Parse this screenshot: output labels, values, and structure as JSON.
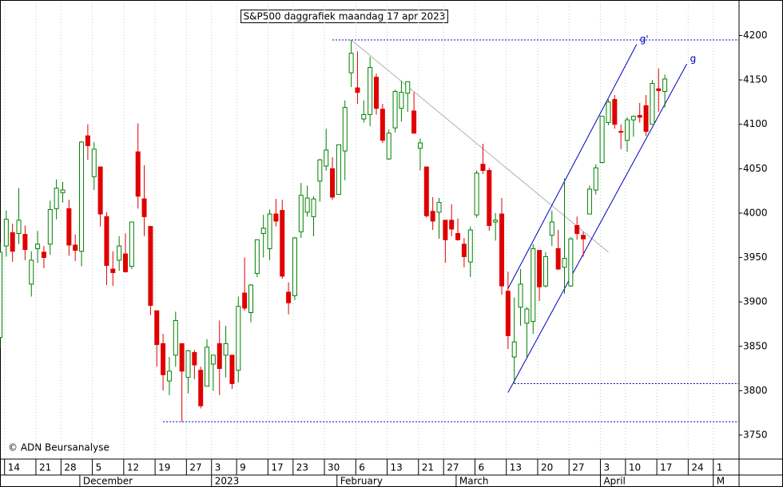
{
  "chart_data": {
    "type": "candlestick",
    "title": "S&P500 daggrafiek maandag 17 apr 2023",
    "footnote": "© ADN Beursanalyse",
    "categories": [
      null,
      null,
      "14",
      null,
      null,
      null,
      null,
      "21",
      null,
      null,
      null,
      "28",
      null,
      null,
      null,
      null,
      "5",
      null,
      null,
      null,
      null,
      "12",
      null,
      null,
      null,
      null,
      "19",
      null,
      null,
      null,
      null,
      "27",
      null,
      null,
      null,
      "3",
      null,
      null,
      null,
      "9",
      null,
      null,
      null,
      null,
      "17",
      null,
      null,
      null,
      "23",
      null,
      null,
      null,
      null,
      "30",
      null,
      null,
      null,
      null,
      "6",
      null,
      null,
      null,
      null,
      "13",
      null,
      null,
      null,
      null,
      "21",
      null,
      null,
      null,
      "27",
      null,
      null,
      null,
      null,
      "6",
      null,
      null,
      null,
      null,
      "13",
      null,
      null,
      null,
      null,
      "20",
      null,
      null,
      null,
      null,
      "27",
      null,
      null,
      null,
      null,
      "3",
      null,
      null,
      null,
      "10",
      null,
      null,
      null,
      null,
      "17",
      null,
      null,
      null,
      null,
      "24",
      null,
      null,
      null,
      "1"
    ],
    "months": [
      null,
      null,
      null,
      null,
      null,
      null,
      null,
      null,
      null,
      null,
      null,
      null,
      null,
      null,
      "December",
      null,
      null,
      null,
      null,
      null,
      null,
      null,
      null,
      null,
      null,
      null,
      null,
      null,
      null,
      null,
      null,
      null,
      null,
      null,
      null,
      "2023",
      null,
      null,
      null,
      null,
      null,
      null,
      null,
      null,
      null,
      null,
      null,
      null,
      null,
      null,
      null,
      null,
      null,
      null,
      null,
      "February",
      null,
      null,
      null,
      null,
      null,
      null,
      null,
      null,
      null,
      null,
      null,
      null,
      null,
      null,
      null,
      null,
      null,
      null,
      "March",
      null,
      null,
      null,
      null,
      null,
      null,
      null,
      null,
      null,
      null,
      null,
      null,
      null,
      null,
      null,
      null,
      null,
      null,
      null,
      null,
      null,
      null,
      "April",
      null,
      null,
      null,
      null,
      null,
      null,
      null,
      null,
      null,
      null,
      null,
      null,
      null,
      null,
      null,
      null,
      null,
      "M"
    ],
    "open": [
      3860,
      3963,
      3978,
      3977,
      3976,
      3920,
      3960,
      3956,
      3965,
      4005,
      4023,
      4005,
      3964,
      3957,
      4087,
      4041,
      4052,
      3996,
      3937,
      3947,
      3954,
      3940,
      4069,
      4016,
      3985,
      3890,
      3853,
      3811,
      3840,
      3853,
      3815,
      3843,
      3823,
      3805,
      3830,
      3853,
      3840,
      3840,
      3823,
      3910,
      3888,
      3932,
      3977,
      3960,
      3999,
      4003,
      3911,
      3907,
      3979,
      4001,
      3996,
      4036,
      4053,
      4050,
      4021,
      4070,
      4158,
      4141,
      4106,
      4111,
      4153,
      4117,
      4061,
      4096,
      4118,
      4135,
      4115,
      4073,
      4052,
      4002,
      4001,
      3992,
      3992,
      3977,
      3965,
      3945,
      3998,
      4055,
      4048,
      3990,
      3999,
      3912,
      3838,
      3894,
      3876,
      3878,
      3958,
      3918,
      3975,
      3960,
      3939,
      3918,
      3986,
      3975,
      3999,
      4026,
      4057,
      4102,
      4128,
      4092,
      4082,
      4105,
      4110,
      4121,
      4100,
      4140,
      4137,
      null,
      null,
      null,
      null,
      null,
      null,
      null,
      null,
      null
    ],
    "high": [
      3966,
      4003,
      3988,
      4028,
      3986,
      3957,
      3980,
      3963,
      4014,
      4038,
      4035,
      4015,
      3976,
      4081,
      4100,
      4080,
      4052,
      4001,
      3957,
      3974,
      3977,
      3990,
      4101,
      4054,
      3985,
      3890,
      3864,
      3838,
      3889,
      3853,
      3846,
      3846,
      3827,
      3858,
      3840,
      3879,
      3873,
      3840,
      3906,
      3950,
      3920,
      3970,
      3998,
      4004,
      4016,
      4015,
      3922,
      3973,
      4034,
      4031,
      4019,
      4061,
      4095,
      4063,
      4077,
      4127,
      4195,
      4182,
      4127,
      4176,
      4157,
      4123,
      4094,
      4139,
      4149,
      4148,
      4136,
      4084,
      4052,
      4018,
      4017,
      3992,
      4010,
      3994,
      3972,
      3985,
      4048,
      4078,
      4051,
      4000,
      4017,
      3934,
      3905,
      3937,
      3894,
      3965,
      3958,
      3956,
      4003,
      3981,
      4039,
      3973,
      3996,
      3979,
      4031,
      4055,
      4109,
      4128,
      4133,
      4100,
      4108,
      4110,
      4124,
      4133,
      4150,
      4163,
      4156,
      null,
      null,
      null,
      null,
      null,
      null,
      null,
      null,
      null
    ],
    "low": [
      3848,
      3951,
      3945,
      3965,
      3947,
      3906,
      3944,
      3938,
      3953,
      3993,
      4012,
      3952,
      3946,
      3940,
      4060,
      4026,
      3985,
      3919,
      3918,
      3935,
      3933,
      3937,
      4005,
      3974,
      3885,
      3827,
      3800,
      3795,
      3827,
      3765,
      3797,
      3813,
      3780,
      3805,
      3800,
      3795,
      3815,
      3802,
      3809,
      3890,
      3877,
      3928,
      3950,
      3947,
      3985,
      3926,
      3886,
      3902,
      3972,
      3996,
      3974,
      4013,
      4048,
      4015,
      4021,
      4037,
      4142,
      4123,
      4102,
      4098,
      4111,
      4079,
      4060,
      4091,
      4103,
      4114,
      4090,
      4048,
      3995,
      3981,
      3971,
      3944,
      3974,
      3969,
      3939,
      3928,
      3995,
      4044,
      3980,
      3969,
      3908,
      3847,
      3808,
      3873,
      3838,
      3864,
      3901,
      3916,
      3963,
      3936,
      3909,
      3917,
      3970,
      3951,
      3999,
      4021,
      4056,
      4099,
      4095,
      4072,
      4069,
      4086,
      4102,
      4087,
      4100,
      4114,
      4119,
      null,
      null,
      null,
      null,
      null,
      null,
      null,
      null,
      null
    ],
    "close": [
      3956,
      3993,
      3957,
      3992,
      3959,
      3947,
      3965,
      3950,
      4004,
      4028,
      4026,
      3964,
      3958,
      4080,
      4076,
      4072,
      3999,
      3941,
      3933,
      3963,
      3934,
      3990,
      4019,
      3996,
      3896,
      3852,
      3818,
      3822,
      3879,
      3822,
      3845,
      3829,
      3783,
      3849,
      3840,
      3825,
      3853,
      3808,
      3895,
      3893,
      3919,
      3970,
      3983,
      3999,
      3991,
      3929,
      3899,
      3972,
      4020,
      4017,
      4016,
      4060,
      4071,
      4018,
      4077,
      4119,
      4180,
      4136,
      4111,
      4164,
      4118,
      4082,
      4090,
      4137,
      4136,
      4148,
      4090,
      4079,
      3997,
      3991,
      4012,
      3970,
      3982,
      3970,
      3951,
      3981,
      4045,
      4048,
      3986,
      3992,
      3918,
      3862,
      3855,
      3920,
      3892,
      3960,
      3917,
      3951,
      3990,
      3937,
      3949,
      3971,
      3977,
      3971,
      4027,
      4051,
      4109,
      4125,
      4100,
      4091,
      4105,
      4109,
      4108,
      4092,
      4146,
      4138,
      4151,
      null,
      null,
      null,
      null,
      null,
      null,
      null,
      null,
      null
    ],
    "up_color": "#008000",
    "down_color": "#e00000",
    "ylim": [
      3723,
      4240
    ],
    "yticks": [
      3750,
      3800,
      3850,
      3900,
      3950,
      4000,
      4050,
      4100,
      4150,
      4200
    ],
    "grid": true,
    "hlines": [
      {
        "value": 4195,
        "from": 53
      },
      {
        "value": 3808,
        "from": 82
      },
      {
        "value": 3765,
        "from": 26
      }
    ],
    "trendlines": [
      {
        "x": [
          56,
          97
        ],
        "y": [
          4195,
          3956
        ],
        "color": "#b0b0b0"
      },
      {
        "x": [
          81,
          101.5
        ],
        "y": [
          3915,
          4190
        ],
        "color": "#0000c0",
        "label": "g'"
      },
      {
        "x": [
          81,
          109.5
        ],
        "y": [
          3798,
          4168
        ],
        "color": "#0000c0",
        "label": "g"
      }
    ]
  }
}
